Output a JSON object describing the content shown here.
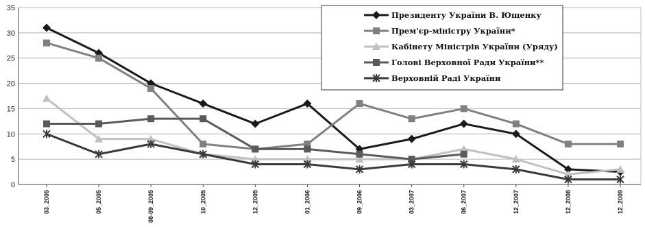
{
  "chart_data": {
    "type": "line",
    "title": "",
    "xlabel": "",
    "ylabel": "",
    "ylim": [
      0,
      35
    ],
    "yticks": [
      0,
      5,
      10,
      15,
      20,
      25,
      30,
      35
    ],
    "grid": "horizontal",
    "legend_position": "top-right",
    "categories": [
      "03_2005",
      "05_2005",
      "08-09_2005",
      "10_2005",
      "12_2005",
      "01_2006",
      "09_2006",
      "03_2007",
      "06_2007",
      "12_2007",
      "12_2008",
      "12_2009"
    ],
    "series": [
      {
        "name": "Президенту України В. Ющенку",
        "color": "#1a1a1a",
        "marker": "diamond",
        "values": [
          31,
          26,
          20,
          16,
          12,
          16,
          7,
          9,
          12,
          10,
          3,
          2.5
        ]
      },
      {
        "name": "Прем'єр-міністру України*",
        "color": "#808080",
        "marker": "square",
        "values": [
          28,
          25,
          19,
          8,
          7,
          8,
          16,
          13,
          15,
          12,
          8,
          8
        ]
      },
      {
        "name": "Кабінету Міністрів України (Уряду)",
        "color": "#c0c0c0",
        "marker": "triangle",
        "values": [
          17,
          9,
          9,
          6,
          5,
          5,
          5,
          5,
          7,
          5,
          2,
          3
        ]
      },
      {
        "name": "Голові Верховної Ради України**",
        "color": "#5a5a5a",
        "marker": "square",
        "values": [
          12,
          12,
          13,
          13,
          7,
          7,
          6,
          5,
          6,
          null,
          null,
          null
        ]
      },
      {
        "name": "Верховній Раді України",
        "color": "#3a3a3a",
        "marker": "star",
        "values": [
          10,
          6,
          8,
          6,
          4,
          4,
          3,
          4,
          4,
          3,
          1,
          1
        ]
      }
    ]
  }
}
